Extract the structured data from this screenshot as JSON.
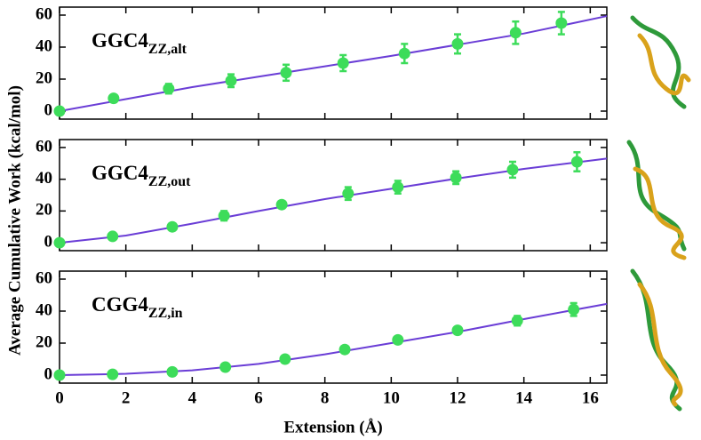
{
  "chart_data": [
    {
      "type": "scatter",
      "label_main": "GGC4",
      "label_sub": "ZZ,alt",
      "ylabel": "Average Cumulative Work (kcal/mol)",
      "x": [
        0,
        1.63,
        3.29,
        5.17,
        6.83,
        8.55,
        10.4,
        12.0,
        13.75,
        15.13
      ],
      "values": [
        0,
        8,
        14,
        19,
        24,
        30,
        36,
        42,
        49,
        55
      ],
      "errors": [
        0,
        1,
        3,
        4,
        5,
        5,
        6,
        6,
        7,
        7
      ],
      "fit": {
        "x": [
          0,
          2,
          4,
          6,
          8,
          10,
          12,
          14,
          16.5
        ],
        "values": [
          0,
          7.5,
          15,
          21.5,
          28,
          34.5,
          41.5,
          48.5,
          59.4
        ],
        "color": "#6a3dd6"
      },
      "color": "#3ddc5a",
      "xlim": [
        0,
        16.5
      ],
      "ylim": [
        -5,
        65
      ],
      "xticks": [
        0,
        2,
        4,
        6,
        8,
        10,
        12,
        14,
        16
      ],
      "yticks": [
        0,
        20,
        40,
        60
      ],
      "show_xtick_labels": false
    },
    {
      "type": "scatter",
      "label_main": "GGC4",
      "label_sub": "ZZ,out",
      "x": [
        0,
        1.6,
        3.4,
        4.96,
        6.7,
        8.7,
        10.2,
        11.95,
        13.66,
        15.6
      ],
      "values": [
        0,
        4,
        10,
        17,
        24,
        31,
        35,
        41,
        46,
        51
      ],
      "errors": [
        0,
        1,
        2,
        3,
        2,
        4,
        4,
        4,
        5,
        6
      ],
      "fit": {
        "x": [
          0,
          2,
          4,
          6,
          8,
          10,
          12,
          14,
          16.5
        ],
        "values": [
          0,
          4.5,
          12,
          20,
          27.5,
          34,
          40.5,
          46.5,
          53
        ],
        "color": "#6a3dd6"
      },
      "color": "#3ddc5a",
      "xlim": [
        0,
        16.5
      ],
      "ylim": [
        -5,
        65
      ],
      "xticks": [
        0,
        2,
        4,
        6,
        8,
        10,
        12,
        14,
        16
      ],
      "yticks": [
        0,
        20,
        40,
        60
      ],
      "show_xtick_labels": false
    },
    {
      "type": "scatter",
      "label_main": "CGG4",
      "label_sub": "ZZ,in",
      "xlabel": "Extension (Å)",
      "x": [
        0,
        1.6,
        3.4,
        5.0,
        6.8,
        8.6,
        10.2,
        12.0,
        13.8,
        15.5
      ],
      "values": [
        0,
        0.5,
        2,
        5,
        10,
        16,
        22,
        28,
        34,
        41
      ],
      "errors": [
        0,
        0,
        1,
        1,
        1,
        1,
        2,
        2,
        3,
        4
      ],
      "fit": {
        "x": [
          0,
          2,
          4,
          6,
          8,
          10,
          12,
          14,
          16.5
        ],
        "values": [
          0,
          0.8,
          3,
          7,
          13,
          20,
          27,
          35,
          44.5
        ],
        "color": "#6a3dd6"
      },
      "color": "#3ddc5a",
      "xlim": [
        0,
        16.5
      ],
      "ylim": [
        -5,
        65
      ],
      "xticks": [
        0,
        2,
        4,
        6,
        8,
        10,
        12,
        14,
        16
      ],
      "yticks": [
        0,
        20,
        40,
        60
      ],
      "show_xtick_labels": true
    }
  ]
}
